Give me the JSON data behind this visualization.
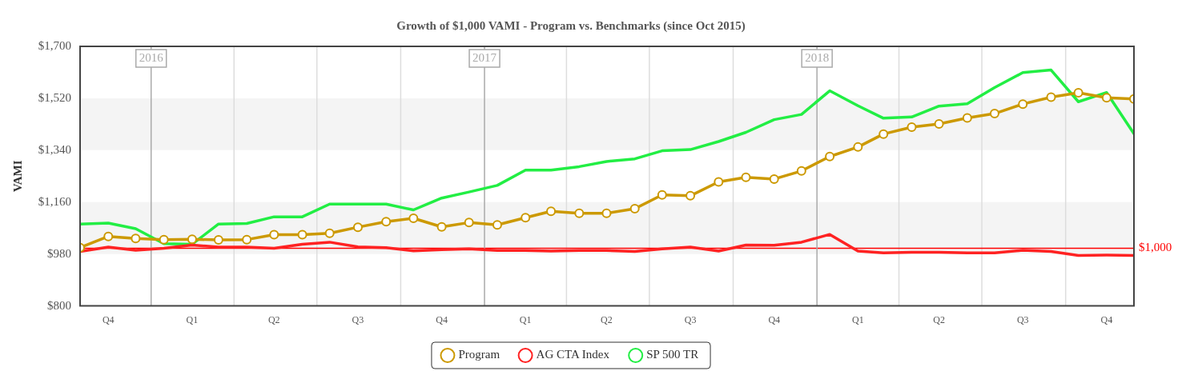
{
  "chart_data": {
    "type": "line",
    "title": "Growth of $1,000 VAMI - Program vs. Benchmarks (since Oct 2015)",
    "ylabel": "VAMI",
    "x": [
      "2015-10-15",
      "2015-11-15",
      "2015-12-15",
      "2016-01-15",
      "2016-02-15",
      "2016-03-15",
      "2016-04-15",
      "2016-05-15",
      "2016-06-15",
      "2016-07-15",
      "2016-08-15",
      "2016-09-15",
      "2016-10-15",
      "2016-11-15",
      "2016-12-15",
      "2017-01-15",
      "2017-02-15",
      "2017-03-15",
      "2017-04-15",
      "2017-05-15",
      "2017-06-15",
      "2017-07-15",
      "2017-08-15",
      "2017-09-15",
      "2017-10-15",
      "2017-11-15",
      "2017-12-15",
      "2018-01-15",
      "2018-02-15",
      "2018-03-15",
      "2018-04-15",
      "2018-05-15",
      "2018-06-15",
      "2018-07-15",
      "2018-08-15",
      "2018-09-15",
      "2018-10-15",
      "2018-11-15",
      "2018-12-15"
    ],
    "series": [
      {
        "name": "Program",
        "color": "#cc9900",
        "marker": "circle",
        "values": [
          1002,
          1041,
          1034,
          1030,
          1031,
          1029,
          1030,
          1047,
          1047,
          1052,
          1073,
          1092,
          1104,
          1074,
          1089,
          1081,
          1106,
          1128,
          1121,
          1121,
          1137,
          1185,
          1182,
          1230,
          1246,
          1240,
          1268,
          1318,
          1351,
          1396,
          1420,
          1431,
          1452,
          1467,
          1500,
          1524,
          1539,
          1522,
          1518
        ]
      },
      {
        "name": "AG CTA Index",
        "color": "#ff2222",
        "marker": "none",
        "values": [
          989,
          1004,
          993,
          1000,
          1011,
          1004,
          1004,
          1000,
          1014,
          1021,
          1005,
          1002,
          991,
          995,
          998,
          992,
          992,
          990,
          992,
          992,
          989,
          998,
          1004,
          990,
          1011,
          1010,
          1021,
          1048,
          990,
          984,
          986,
          986,
          984,
          984,
          993,
          989,
          975,
          976,
          975
        ]
      },
      {
        "name": "SP 500 TR",
        "color": "#22ee44",
        "marker": "none",
        "values": [
          1084,
          1087,
          1068,
          1016,
          1014,
          1084,
          1086,
          1109,
          1109,
          1153,
          1153,
          1153,
          1133,
          1174,
          1195,
          1218,
          1271,
          1271,
          1283,
          1301,
          1310,
          1338,
          1342,
          1370,
          1402,
          1446,
          1464,
          1546,
          1494,
          1451,
          1455,
          1493,
          1501,
          1557,
          1609,
          1618,
          1508,
          1540,
          1397
        ]
      }
    ],
    "xlim": [
      "2015-10-15",
      "2018-12-15"
    ],
    "xticks": [
      {
        "value": "2015-11-15",
        "label": "Q4"
      },
      {
        "value": "2016-02-15",
        "label": "Q1"
      },
      {
        "value": "2016-04-01",
        "label": null
      },
      {
        "value": "2016-05-15",
        "label": "Q2"
      },
      {
        "value": "2016-07-01",
        "label": null
      },
      {
        "value": "2016-08-15",
        "label": "Q3"
      },
      {
        "value": "2016-10-01",
        "label": null
      },
      {
        "value": "2016-11-15",
        "label": "Q4"
      },
      {
        "value": "2017-02-15",
        "label": "Q1"
      },
      {
        "value": "2017-04-01",
        "label": null
      },
      {
        "value": "2017-05-15",
        "label": "Q2"
      },
      {
        "value": "2017-07-01",
        "label": null
      },
      {
        "value": "2017-08-15",
        "label": "Q3"
      },
      {
        "value": "2017-10-01",
        "label": null
      },
      {
        "value": "2017-11-15",
        "label": "Q4"
      },
      {
        "value": "2018-02-15",
        "label": "Q1"
      },
      {
        "value": "2018-04-01",
        "label": null
      },
      {
        "value": "2018-05-15",
        "label": "Q2"
      },
      {
        "value": "2018-07-01",
        "label": null
      },
      {
        "value": "2018-08-15",
        "label": "Q3"
      },
      {
        "value": "2018-10-01",
        "label": null
      },
      {
        "value": "2018-11-15",
        "label": "Q4"
      }
    ],
    "ylim": [
      800,
      1700
    ],
    "yticks": [
      {
        "value": 800,
        "label": "$800"
      },
      {
        "value": 980,
        "label": "$980"
      },
      {
        "value": 1160,
        "label": "$1,160"
      },
      {
        "value": 1340,
        "label": "$1,340"
      },
      {
        "value": 1520,
        "label": "$1,520"
      },
      {
        "value": 1700,
        "label": "$1,700"
      }
    ],
    "bands": [
      {
        "axis": "y",
        "from": 980,
        "to": 1160,
        "color": "#f4f4f4"
      },
      {
        "axis": "y",
        "from": 1340,
        "to": 1520,
        "color": "#f4f4f4"
      }
    ],
    "ref_lines": [
      {
        "axis": "y",
        "value": 1000,
        "label": "$1,000",
        "color": "#ff0000"
      },
      {
        "axis": "x",
        "value": "2016-01-01",
        "label": "2016",
        "color": "#aaaaaa"
      },
      {
        "axis": "x",
        "value": "2017-01-01",
        "label": "2017",
        "color": "#aaaaaa"
      },
      {
        "axis": "x",
        "value": "2018-01-01",
        "label": "2018",
        "color": "#aaaaaa"
      }
    ],
    "grid": "x",
    "legend": "bottom",
    "line_style": "solid"
  }
}
